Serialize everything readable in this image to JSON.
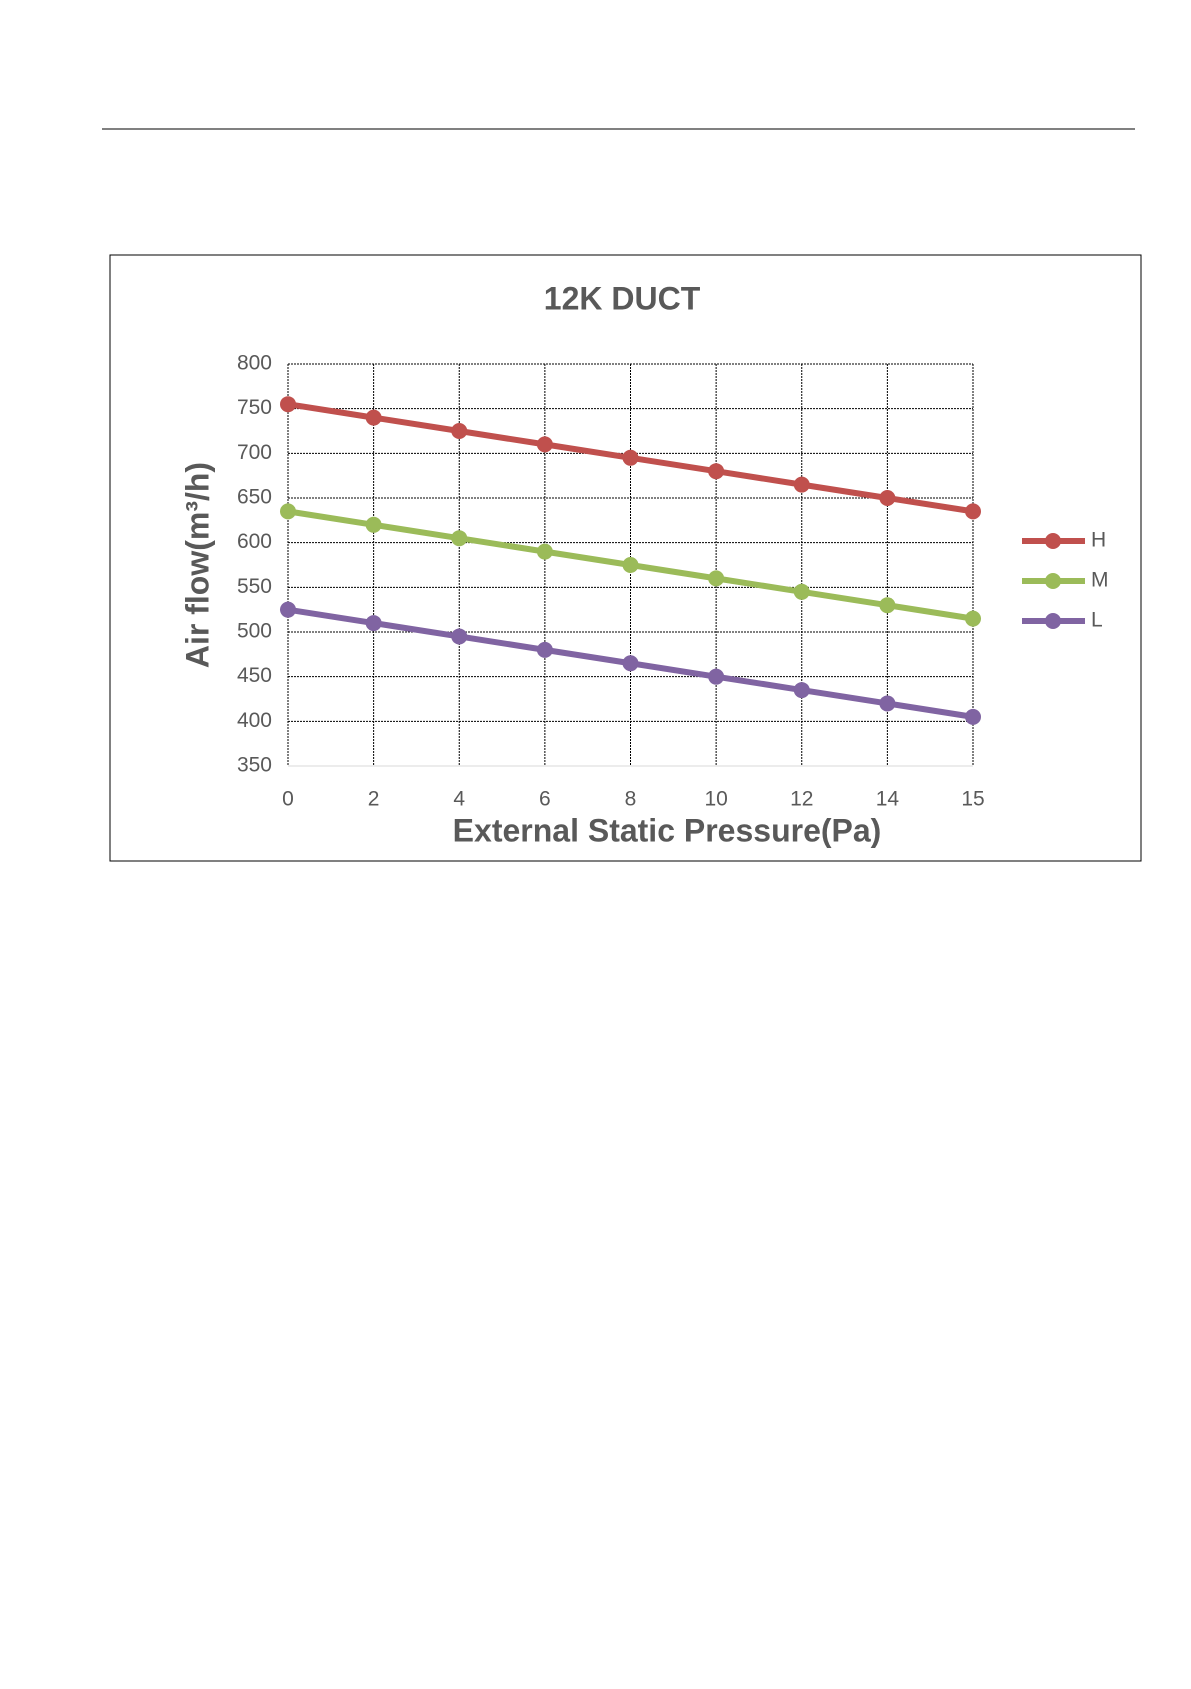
{
  "chart_data": {
    "type": "line",
    "title": "12K DUCT",
    "x_label": "External Static Pressure(Pa)",
    "y_label": "Air flow(m³/h)",
    "categories": [
      "0",
      "2",
      "4",
      "6",
      "8",
      "10",
      "12",
      "14",
      "15"
    ],
    "series": [
      {
        "name": "H",
        "color": "#c0504d",
        "values": [
          755,
          740,
          725,
          710,
          695,
          680,
          665,
          650,
          635
        ]
      },
      {
        "name": "M",
        "color": "#9bbb59",
        "values": [
          635,
          620,
          605,
          590,
          575,
          560,
          545,
          530,
          515
        ]
      },
      {
        "name": "L",
        "color": "#8064a2",
        "values": [
          525,
          510,
          495,
          480,
          465,
          450,
          435,
          420,
          405
        ]
      }
    ],
    "ylim": [
      350,
      800
    ],
    "yticks": [
      350,
      400,
      450,
      500,
      550,
      600,
      650,
      700,
      750,
      800
    ],
    "grid": true,
    "legend": "right"
  }
}
